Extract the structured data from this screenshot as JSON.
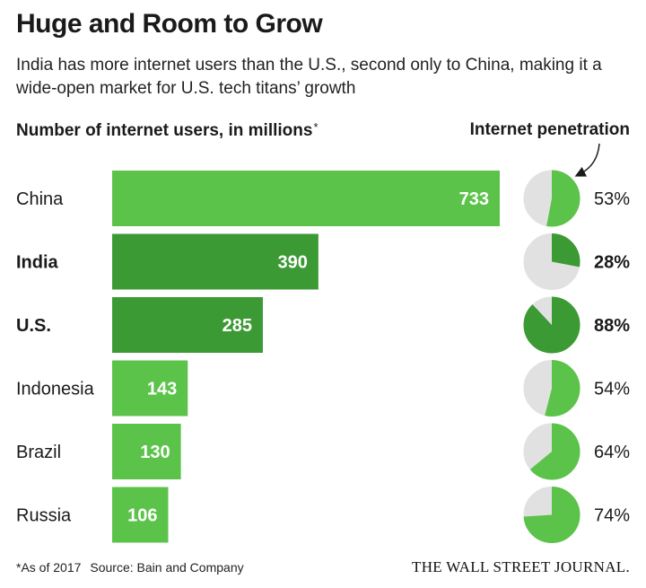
{
  "title": "Huge and Room to Grow",
  "subtitle": "India has more internet users than the U.S., second only to China, making it a wide-open market for U.S. tech titans’ growth",
  "left_header": "Number of internet users, in millions",
  "left_header_mark": "*",
  "right_header": "Internet penetration",
  "footnote": "*As of 2017",
  "source": "Source: Bain and Company",
  "publisher": "THE WALL STREET JOURNAL.",
  "colors": {
    "bar_light": "#5cc34a",
    "bar_dark": "#3c9a34",
    "pie_rest": "#e1e1e1"
  },
  "chart_data": {
    "type": "bar",
    "orientation": "horizontal",
    "categories": [
      "China",
      "India",
      "U.S.",
      "Indonesia",
      "Brazil",
      "Russia"
    ],
    "values": [
      733,
      390,
      285,
      143,
      130,
      106
    ],
    "highlight": [
      false,
      true,
      true,
      false,
      false,
      false
    ],
    "penetration": {
      "type": "pie",
      "values": [
        53,
        28,
        88,
        54,
        64,
        74
      ],
      "labels": [
        "53%",
        "28%",
        "88%",
        "54%",
        "64%",
        "74%"
      ]
    },
    "xlim": [
      0,
      733
    ]
  }
}
